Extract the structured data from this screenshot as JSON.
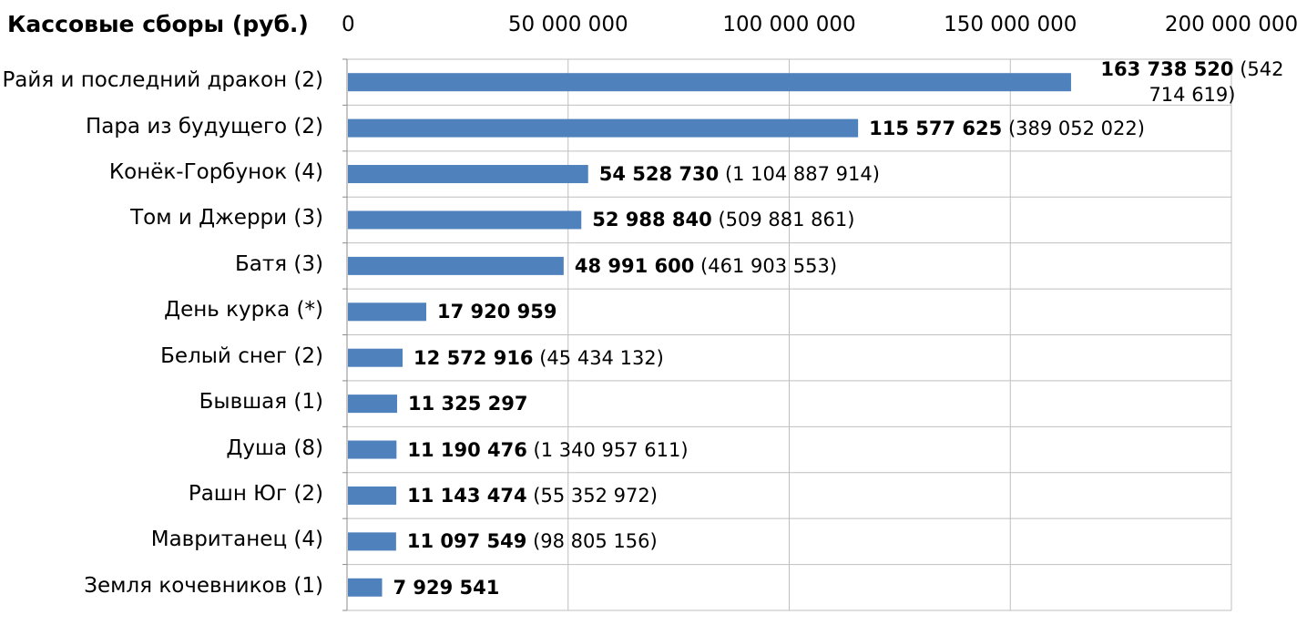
{
  "chart_data": {
    "type": "bar",
    "orientation": "horizontal",
    "title": "Кассовые сборы (руб.)",
    "xlim": [
      0,
      200000000
    ],
    "xticks": [
      0,
      50000000,
      100000000,
      150000000,
      200000000
    ],
    "xtick_labels": [
      "0",
      "50 000 000",
      "100 000 000",
      "150 000 000",
      "200 000 000"
    ],
    "categories": [
      "Райя и последний дракон (2)",
      "Пара из будущего (2)",
      "Конёк-Горбунок (4)",
      "Том и Джерри (3)",
      "Батя (3)",
      "День курка (*)",
      "Белый снег (2)",
      "Бывшая (1)",
      "Душа (8)",
      "Рашн Юг (2)",
      "Мавританец (4)",
      "Земля кочевников (1)"
    ],
    "values": [
      163738520,
      115577625,
      54528730,
      52988840,
      48991600,
      17920959,
      12572916,
      11325297,
      11190476,
      11143474,
      11097549,
      7929541
    ],
    "value_labels": [
      "163 738 520",
      "115 577 625",
      "54 528 730",
      "52 988 840",
      "48 991 600",
      "17 920 959",
      "12 572 916",
      "11 325 297",
      "11 190 476",
      "11 143 474",
      "11 097 549",
      "7 929 541"
    ],
    "total_labels": [
      "(542 714 619)",
      "(389 052 022)",
      "(1 104 887 914)",
      "(509 881 861)",
      "(461 903 553)",
      "",
      "(45 434 132)",
      "",
      "(1 340 957 611)",
      "(55 352 972)",
      "(98 805 156)",
      ""
    ],
    "grid": true,
    "bar_color": "#4f81bd"
  }
}
